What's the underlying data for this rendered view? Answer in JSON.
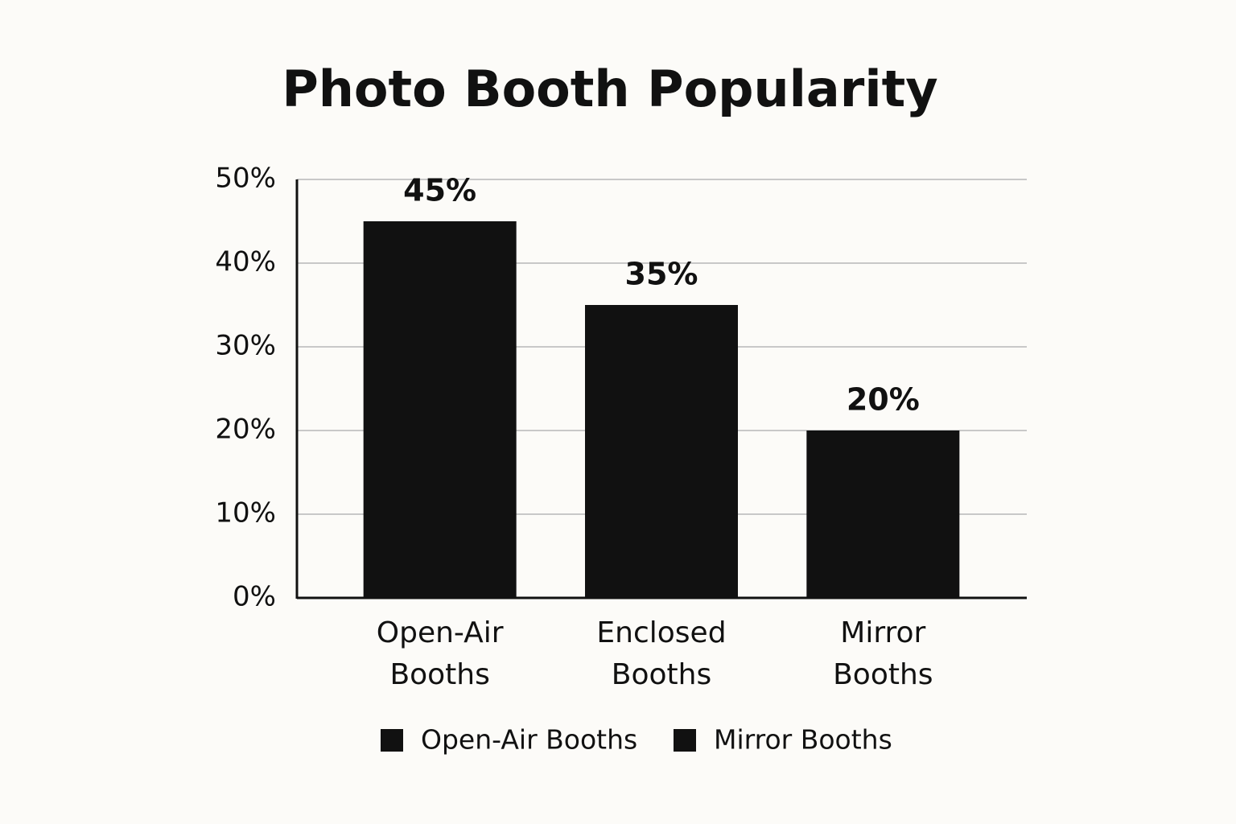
{
  "chart_data": {
    "type": "bar",
    "title": "Photo Booth Popularity",
    "categories": [
      "Open-Air Booths",
      "Enclosed Booths",
      "Mirror Booths"
    ],
    "values": [
      45,
      35,
      20
    ],
    "value_labels": [
      "45%",
      "35%",
      "20%"
    ],
    "color": "#111111",
    "ylim": [
      0,
      50
    ],
    "yticks": [
      {
        "value": 0,
        "label": "0%"
      },
      {
        "value": 10,
        "label": "10%"
      },
      {
        "value": 20,
        "label": "20%"
      },
      {
        "value": 30,
        "label": "30%"
      },
      {
        "value": 40,
        "label": "40%"
      },
      {
        "value": 50,
        "label": "50%"
      }
    ],
    "grid": true,
    "legend": [
      {
        "name": "Open-Air Booths",
        "color": "#111111"
      },
      {
        "name": "Mirror Booths",
        "color": "#111111"
      }
    ]
  }
}
